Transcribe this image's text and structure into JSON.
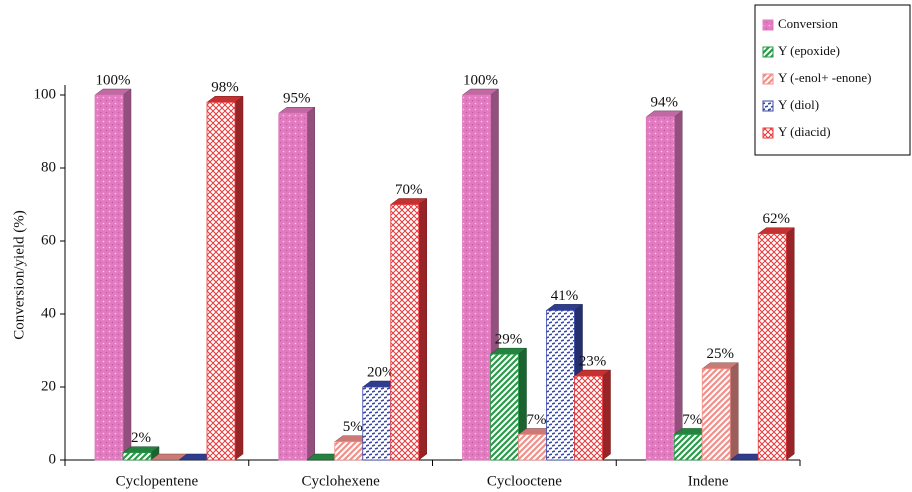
{
  "chart_data": {
    "type": "bar3d",
    "y_label": "Conversion/yield (%)",
    "categories": [
      "Cyclopentene",
      "Cyclohexene",
      "Cyclooctene",
      "Indene"
    ],
    "series": [
      {
        "name": "Conversion",
        "color": "#e27bc0",
        "pattern": "dots",
        "values": [
          100,
          95,
          100,
          94
        ],
        "value_labels": [
          "100%",
          "95%",
          "100%",
          "94%"
        ]
      },
      {
        "name": "Y (epoxide)",
        "color": "#2a9a4a",
        "pattern": "diagonal",
        "values": [
          2,
          0,
          29,
          7
        ],
        "value_labels": [
          "2%",
          null,
          "29%",
          "7%"
        ]
      },
      {
        "name": "Y (-enol+ -enone)",
        "color": "#f0908a",
        "pattern": "diagonal",
        "values": [
          0,
          5,
          7,
          25
        ],
        "value_labels": [
          null,
          "5%",
          "7%",
          "25%"
        ]
      },
      {
        "name": "Y (diol)",
        "color": "#3848a8",
        "pattern": "dashes",
        "values": [
          0,
          20,
          41,
          0
        ],
        "value_labels": [
          null,
          "20%",
          "41%",
          null
        ]
      },
      {
        "name": "Y (diacid)",
        "color": "#e8383a",
        "pattern": "crosshatch",
        "values": [
          98,
          70,
          23,
          62
        ],
        "value_labels": [
          "98%",
          "70%",
          "23%",
          "62%"
        ]
      }
    ],
    "ylim": [
      0,
      100
    ],
    "yticks": [
      0,
      20,
      40,
      60,
      80,
      100
    ],
    "legend": "top-right"
  }
}
